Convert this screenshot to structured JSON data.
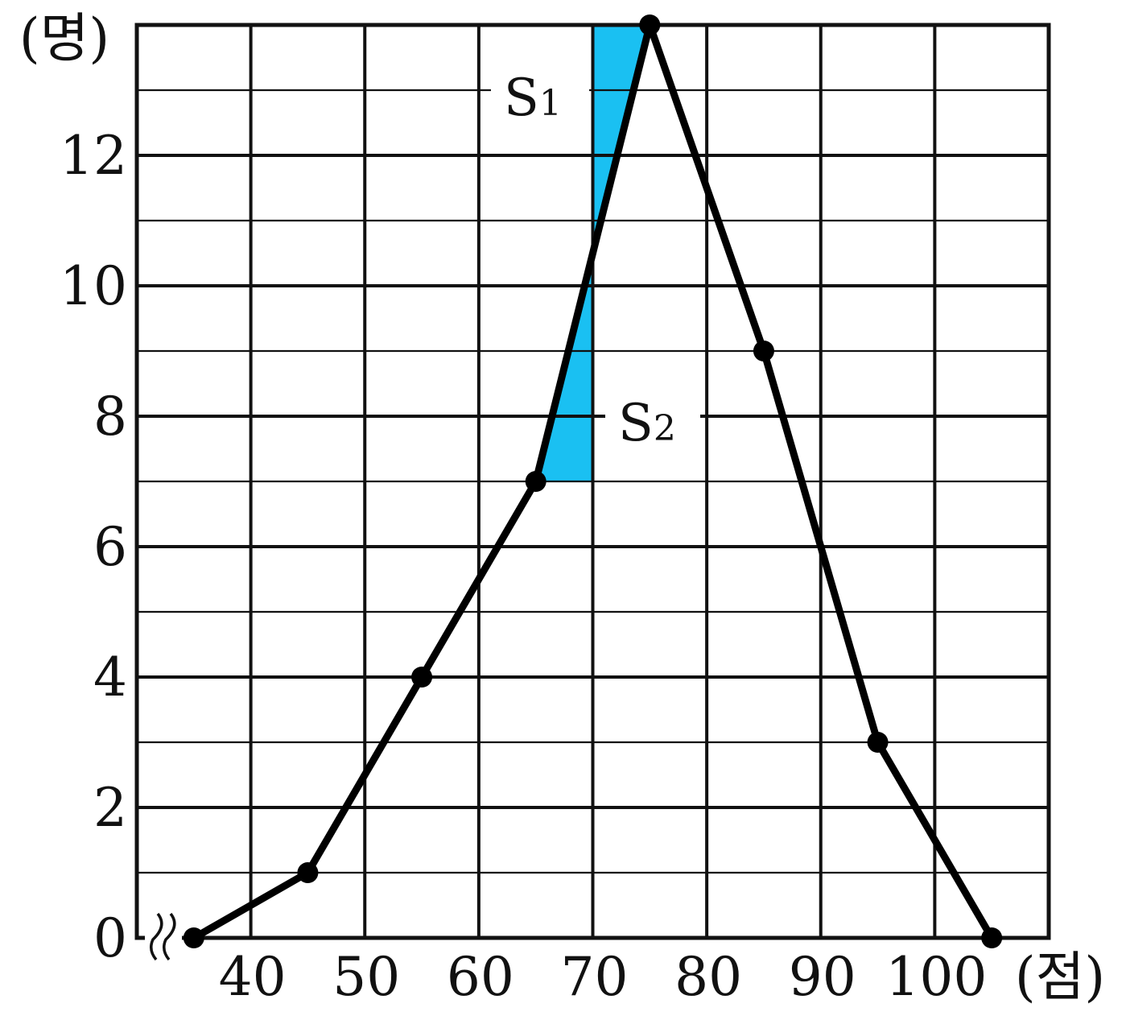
{
  "chart_data": {
    "type": "line",
    "title": "",
    "xlabel": "(점)",
    "ylabel": "(명)",
    "xlim": [
      30,
      110
    ],
    "ylim": [
      0,
      14
    ],
    "grid": true,
    "axis_break": "x",
    "x_ticks": [
      40,
      50,
      60,
      70,
      80,
      90,
      100
    ],
    "x_tick_labels": [
      "40",
      "50",
      "60",
      "70",
      "80",
      "90",
      "100"
    ],
    "y_ticks": [
      0,
      2,
      4,
      6,
      8,
      10,
      12
    ],
    "y_tick_labels": [
      "0",
      "2",
      "4",
      "6",
      "8",
      "10",
      "12"
    ],
    "series": [
      {
        "x": [
          35,
          45,
          55,
          65,
          75,
          85,
          95,
          105
        ],
        "y": [
          0,
          1,
          4,
          7,
          14,
          9,
          3,
          0
        ]
      }
    ],
    "shaded_regions": [
      {
        "label": "S",
        "subscript": "1",
        "x_from": 70,
        "x_to": 75,
        "y_top": 14
      },
      {
        "label": "S",
        "subscript": "2",
        "x_from": 65,
        "x_to": 70,
        "y_bottom": 7
      }
    ],
    "colors": {
      "line": "#000000",
      "shade": "#1ac0f2",
      "grid": "#111111"
    }
  }
}
